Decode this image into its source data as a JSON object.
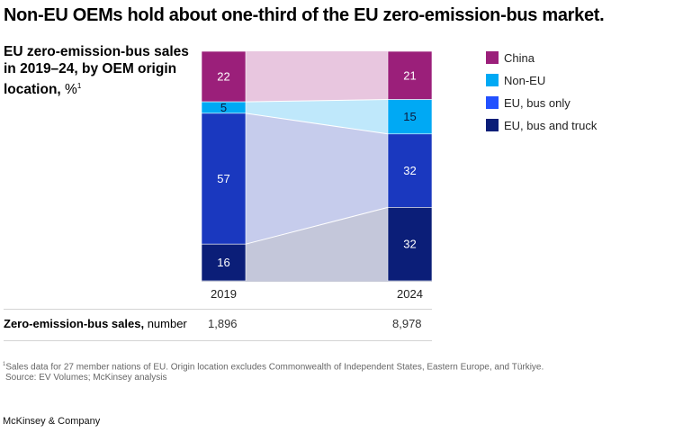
{
  "title": "Non-EU OEMs hold about one-third of the EU zero-emission-bus market.",
  "subtitle": {
    "main": "EU zero-emission-bus sales in 2019–24, by OEM origin location,",
    "unit": "%",
    "footnote_marker": "1"
  },
  "chart_data": {
    "type": "bar",
    "subtype": "stacked-100-percent-with-flows",
    "title": "EU zero-emission-bus sales in 2019–24, by OEM origin location, %",
    "categories": [
      "2019",
      "2024"
    ],
    "series": [
      {
        "name": "China",
        "values": [
          22,
          21
        ],
        "color": "#9b1f7a",
        "flow_color": "#e8c6df"
      },
      {
        "name": "Non-EU",
        "values": [
          5,
          15
        ],
        "color": "#00a9f4",
        "flow_color": "#bfe8fb"
      },
      {
        "name": "EU, bus only",
        "values": [
          57,
          32
        ],
        "color": "#1a38bf",
        "flow_color": "#c6ccec"
      },
      {
        "name": "EU, bus and truck",
        "values": [
          16,
          32
        ],
        "color": "#0b1e78",
        "flow_color": "#c4c7da"
      }
    ],
    "stack_order_top_to_bottom": [
      "China",
      "Non-EU",
      "EU, bus only",
      "EU, bus and truck"
    ],
    "ylim": [
      0,
      100
    ],
    "legend_position": "right",
    "grid": false,
    "xlabel": "",
    "ylabel": ""
  },
  "legend": [
    {
      "label": "China",
      "color": "#9b1f7a"
    },
    {
      "label": "Non-EU",
      "color": "#00a9f4"
    },
    {
      "label": "EU, bus only",
      "color": "#2251ff"
    },
    {
      "label": "EU, bus and truck",
      "color": "#0b1e78"
    }
  ],
  "sales_row": {
    "label_bold": "Zero-emission-bus sales,",
    "label_unit": "number",
    "values": [
      "1,896",
      "8,978"
    ]
  },
  "footnote": {
    "marker": "1",
    "text": "Sales data for 27 member nations of EU. Origin location excludes Commonwealth of Independent States, Eastern Europe, and Türkiye.",
    "source": "Source: EV Volumes; McKinsey analysis"
  },
  "brand": "McKinsey & Company"
}
